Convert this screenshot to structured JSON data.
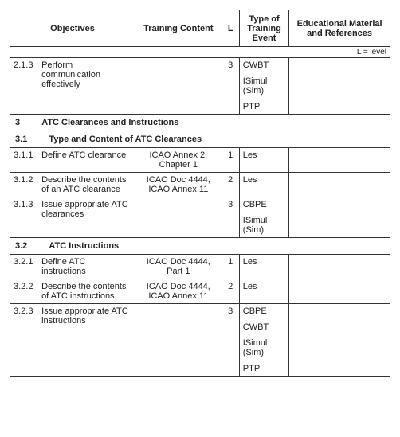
{
  "headers": {
    "objectives": "Objectives",
    "training_content": "Training Content",
    "level_short": "L",
    "type_event": "Type of Training Event",
    "references": "Educational Material and References"
  },
  "legend": "L = level",
  "rows": {
    "r213_num": "2.1.3",
    "r213_txt": "Perform communication effectively",
    "r213_lvl": "3",
    "r213_t1": "CWBT",
    "r213_t2": "ISimul (Sim)",
    "r213_t3": "PTP",
    "sec3": "3",
    "sec3_title": "ATC Clearances and Instructions",
    "sec31": "3.1",
    "sec31_title": "Type and Content of ATC Clearances",
    "r311_num": "3.1.1",
    "r311_txt": "Define ATC clearance",
    "r311_tc": "ICAO Annex 2, Chapter 1",
    "r311_lvl": "1",
    "r311_type": "Les",
    "r312_num": "3.1.2",
    "r312_txt": "Describe the contents of an ATC clearance",
    "r312_tc": "ICAO Doc 4444, ICAO Annex 11",
    "r312_lvl": "2",
    "r312_type": "Les",
    "r313_num": "3.1.3",
    "r313_txt": "Issue appropriate ATC clearances",
    "r313_lvl": "3",
    "r313_t1": "CBPE",
    "r313_t2": "ISimul (Sim)",
    "sec32": "3.2",
    "sec32_title": "ATC Instructions",
    "r321_num": "3.2.1",
    "r321_txt": "Define ATC instructions",
    "r321_tc": "ICAO Doc 4444, Part 1",
    "r321_lvl": "1",
    "r321_type": "Les",
    "r322_num": "3.2.2",
    "r322_txt": "Describe the contents of ATC instructions",
    "r322_tc": "ICAO Doc 4444, ICAO Annex 11",
    "r322_lvl": "2",
    "r322_type": "Les",
    "r323_num": "3.2.3",
    "r323_txt": "Issue appropriate ATC instructions",
    "r323_lvl": "3",
    "r323_t1": "CBPE",
    "r323_t2": "CWBT",
    "r323_t3": "ISimul (Sim)",
    "r323_t4": "PTP"
  }
}
